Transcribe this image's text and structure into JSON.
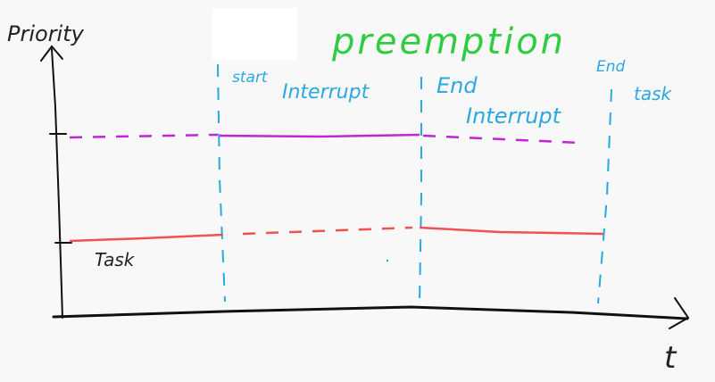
{
  "title": "preemption",
  "axes": {
    "y_label": "Priority",
    "x_label": "t"
  },
  "labels": {
    "start_interrupt_line1": "start",
    "start_interrupt_line2": "Interrupt",
    "end_interrupt_line1": "End",
    "end_interrupt_line2": "Interrupt",
    "end_task_line1": "End",
    "end_task_line2": "task",
    "task": "Task"
  },
  "colors": {
    "title": "#2ecc40",
    "axis": "#111111",
    "marker_line": "#2aa8e0",
    "interrupt_priority": "#c026d3",
    "task_priority": "#ef5350",
    "text_dark": "#222222",
    "text_blue": "#2aa8e0",
    "redaction": "#ffffff"
  }
}
